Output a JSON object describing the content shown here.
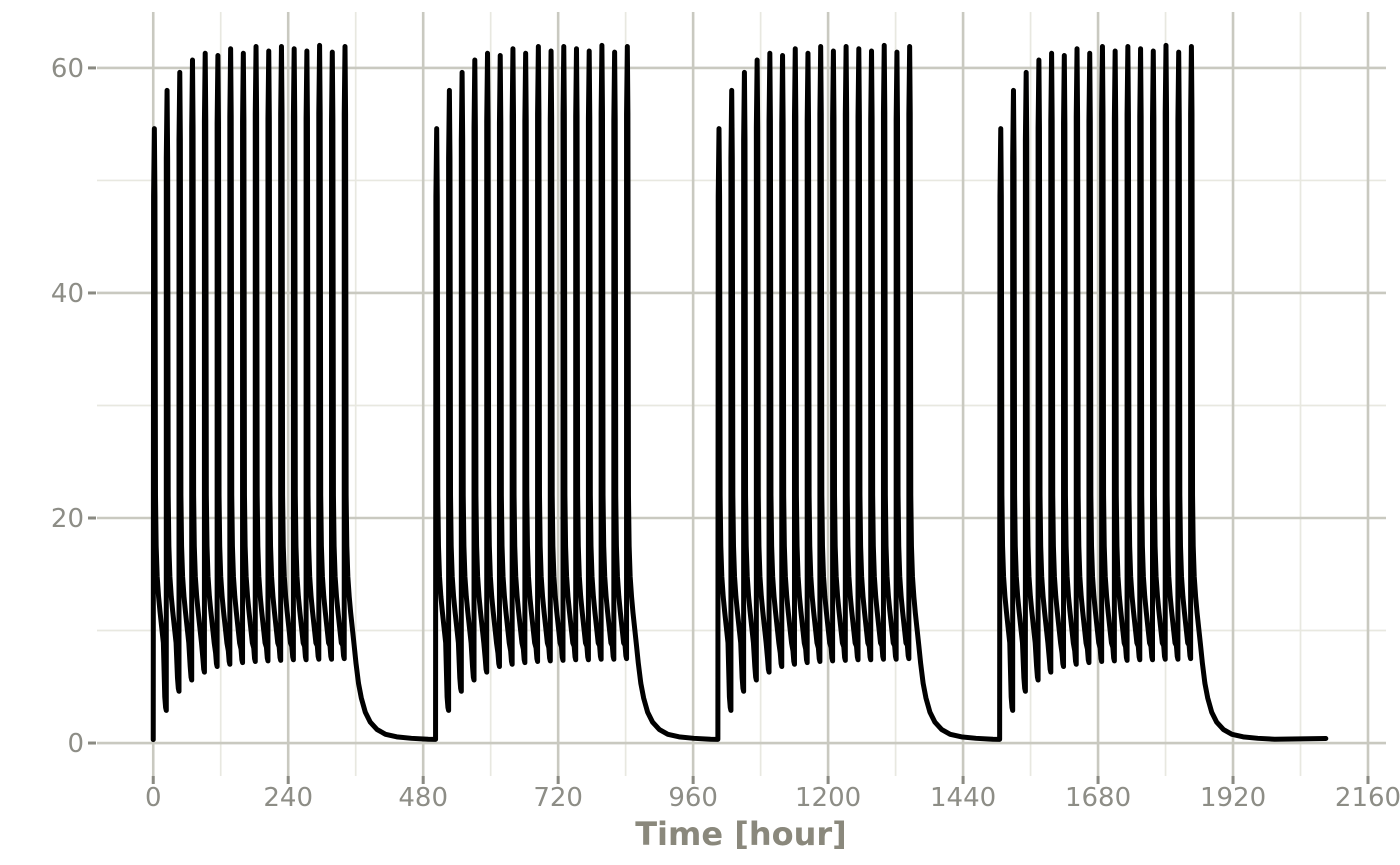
{
  "figure": {
    "background_color": "#ffffff",
    "colors": {
      "major_grid": "#c9c9c0",
      "minor_grid": "#e8e8e0",
      "axis_tick": "#8a8a82",
      "tick_label": "#8d8d86",
      "axis_title": "#8a887c",
      "series_line": "#000000"
    }
  },
  "chart_data": {
    "type": "line",
    "title": "",
    "xlabel": "Time [hour]",
    "ylabel": "",
    "legend": "none",
    "grid": "on",
    "x_ticks": [
      0,
      240,
      480,
      720,
      960,
      1200,
      1440,
      1680,
      1920,
      2160
    ],
    "x_minor_ticks": [
      120,
      360,
      600,
      840,
      1080,
      1320,
      1560,
      1800,
      2040
    ],
    "y_ticks": [
      0,
      20,
      40,
      60
    ],
    "y_minor_ticks": [
      10,
      30,
      50
    ],
    "x_range": [
      -100,
      2192
    ],
    "y_range": [
      -2.93,
      64.97
    ],
    "line_width": 5,
    "series_description": "Relaxation-bursting oscillation: 4 identical bursts of 16 fast spikes, each burst followed by a slow decaying quiescent tail near 0",
    "bursts": {
      "onsets": [
        0,
        502,
        1004,
        1505
      ],
      "spikes_per_burst": 16,
      "spike_period_hours": 22.6,
      "first_peak_offset_hours": 2,
      "spike_peaks": [
        54.6,
        58.0,
        59.6,
        60.7,
        61.3,
        61.1,
        61.7,
        61.3,
        61.9,
        61.5,
        61.9,
        61.7,
        61.5,
        62.0,
        61.4,
        61.9
      ],
      "interspike_minima": [
        2.9,
        4.6,
        5.6,
        6.3,
        6.8,
        7.0,
        7.15,
        7.25,
        7.3,
        7.35,
        7.4,
        7.4,
        7.45,
        7.45,
        7.5
      ],
      "spike_fall_profile_dt_hours_value": [
        [
          2.0,
          22.0
        ],
        [
          3.2,
          17.5
        ],
        [
          5.0,
          14.8
        ],
        [
          7.5,
          13.0
        ],
        [
          10.0,
          11.7
        ],
        [
          13.0,
          10.3
        ],
        [
          16.0,
          8.9
        ]
      ],
      "tail_points_dt_hours_value": [
        [
          2.0,
          22.0
        ],
        [
          3.2,
          17.5
        ],
        [
          5.0,
          14.8
        ],
        [
          7.5,
          13.0
        ],
        [
          10.0,
          11.6
        ],
        [
          13.0,
          10.2
        ],
        [
          16.0,
          8.8
        ],
        [
          19.5,
          7.1
        ],
        [
          24.0,
          5.3
        ],
        [
          29.0,
          4.0
        ],
        [
          36.0,
          2.75
        ],
        [
          45.0,
          1.85
        ],
        [
          57.0,
          1.2
        ],
        [
          72.0,
          0.78
        ],
        [
          92.0,
          0.55
        ],
        [
          118.0,
          0.42
        ],
        [
          148.0,
          0.34
        ]
      ],
      "start_value": 0.3,
      "quiescent_value": 0.33,
      "end_time": 2085,
      "end_value": 0.4
    }
  }
}
